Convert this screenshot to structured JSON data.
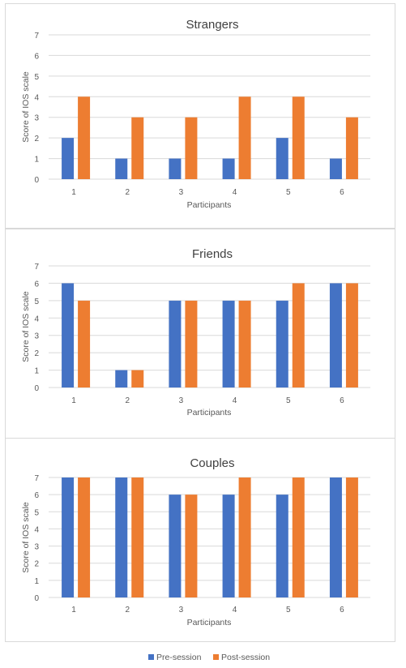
{
  "chart_data": [
    {
      "type": "bar",
      "title": "Strangers",
      "xlabel": "Participants",
      "ylabel": "Score of IOS scale",
      "categories": [
        "1",
        "2",
        "3",
        "4",
        "5",
        "6"
      ],
      "ylim": [
        0,
        7
      ],
      "yticks": [
        "0",
        "1",
        "2",
        "3",
        "4",
        "5",
        "6",
        "7"
      ],
      "grid": true,
      "series": [
        {
          "name": "Pre-session",
          "values": [
            2,
            1,
            1,
            1,
            2,
            1
          ]
        },
        {
          "name": "Post-session",
          "values": [
            4,
            3,
            3,
            4,
            4,
            3
          ]
        }
      ]
    },
    {
      "type": "bar",
      "title": "Friends",
      "xlabel": "Participants",
      "ylabel": "Score of IOS scale",
      "categories": [
        "1",
        "2",
        "3",
        "4",
        "5",
        "6"
      ],
      "ylim": [
        0,
        7
      ],
      "yticks": [
        "0",
        "1",
        "2",
        "3",
        "4",
        "5",
        "6",
        "7"
      ],
      "grid": true,
      "series": [
        {
          "name": "Pre-session",
          "values": [
            6,
            1,
            5,
            5,
            5,
            6
          ]
        },
        {
          "name": "Post-session",
          "values": [
            5,
            1,
            5,
            5,
            6,
            6
          ]
        }
      ]
    },
    {
      "type": "bar",
      "title": "Couples",
      "xlabel": "Participants",
      "ylabel": "Score of IOS scale",
      "categories": [
        "1",
        "2",
        "3",
        "4",
        "5",
        "6"
      ],
      "ylim": [
        0,
        7
      ],
      "yticks": [
        "0",
        "1",
        "2",
        "3",
        "4",
        "5",
        "6",
        "7"
      ],
      "grid": true,
      "series": [
        {
          "name": "Pre-session",
          "values": [
            7,
            7,
            6,
            6,
            6,
            7
          ]
        },
        {
          "name": "Post-session",
          "values": [
            7,
            7,
            6,
            7,
            7,
            7
          ]
        }
      ]
    }
  ],
  "legend": {
    "placement": "bottom",
    "items": [
      {
        "label": "Pre-session",
        "color": "#4472c4"
      },
      {
        "label": "Post-session",
        "color": "#ed7d31"
      }
    ]
  },
  "colors": {
    "pre": "#4472c4",
    "post": "#ed7d31",
    "grid": "#d9d9d9",
    "border": "#d9d9d9",
    "title": "#404040",
    "tick": "#595959"
  }
}
